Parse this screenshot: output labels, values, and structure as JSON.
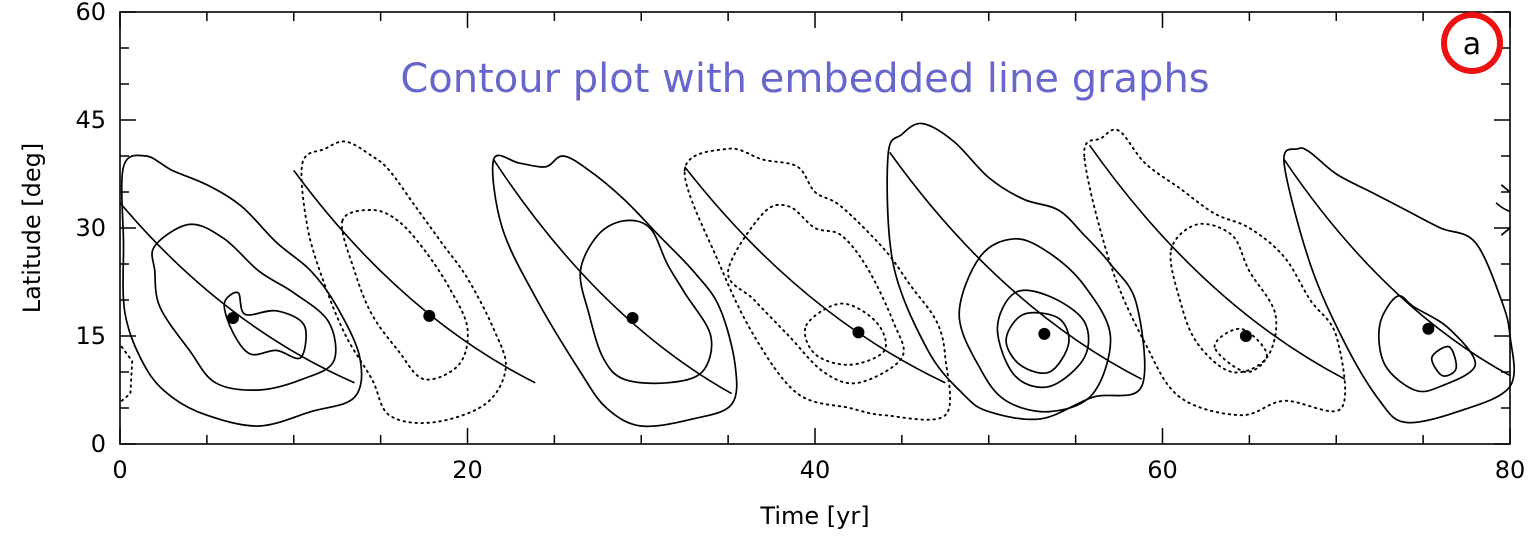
{
  "chart_data": {
    "type": "contour",
    "title": "Contour plot with embedded line graphs",
    "panel_label": "a",
    "xlabel": "Time [yr]",
    "ylabel": "Latitude [deg]",
    "xlim": [
      0,
      80
    ],
    "ylim": [
      0,
      60
    ],
    "x_ticks": [
      0,
      20,
      40,
      60,
      80
    ],
    "y_ticks": [
      0,
      15,
      30,
      45,
      60
    ],
    "x_tick_labels": [
      "0",
      "20",
      "40",
      "60",
      "80"
    ],
    "y_tick_labels": [
      "0",
      "15",
      "30",
      "45",
      "60"
    ],
    "grid": false,
    "colors": {
      "title": "#6666cc",
      "panel_circle": "#ee1111",
      "lines": "#000000"
    },
    "cycles": [
      {
        "style": "solid",
        "levels": [
          [
            [
              0.2,
              38.5
            ],
            [
              1.5,
              40.0
            ],
            [
              3,
              38.0
            ],
            [
              5,
              36.0
            ],
            [
              7,
              33.0
            ],
            [
              9,
              28.0
            ],
            [
              11,
              24.0
            ],
            [
              12.5,
              19.0
            ],
            [
              13.8,
              12.0
            ],
            [
              13.5,
              6.5
            ],
            [
              11,
              4.5
            ],
            [
              8,
              2.5
            ],
            [
              5,
              4.0
            ],
            [
              3,
              6.5
            ],
            [
              1.5,
              10.5
            ],
            [
              0.3,
              18.0
            ],
            [
              0.2,
              28.0
            ]
          ],
          [
            [
              2,
              27.5
            ],
            [
              4,
              30.5
            ],
            [
              6,
              28.5
            ],
            [
              8,
              24.0
            ],
            [
              10,
              21.0
            ],
            [
              12,
              17.0
            ],
            [
              12.3,
              11.5
            ],
            [
              10.5,
              9.0
            ],
            [
              8,
              7.5
            ],
            [
              5.5,
              8.5
            ],
            [
              4,
              13.0
            ],
            [
              2.3,
              19.0
            ],
            [
              2,
              24.0
            ]
          ],
          [
            [
              6,
              19.5
            ],
            [
              6.8,
              21.0
            ],
            [
              7.2,
              18.0
            ],
            [
              9.0,
              18.5
            ],
            [
              10.6,
              16.5
            ],
            [
              10.4,
              12.0
            ],
            [
              9.0,
              13.0
            ],
            [
              7.5,
              12.5
            ],
            [
              6.5,
              15.5
            ]
          ]
        ],
        "track": [
          [
            0,
            33.5
          ],
          [
            13.5,
            8.5
          ]
        ],
        "peak": [
          6.5,
          17.5
        ]
      },
      {
        "style": "dotted",
        "levels": [
          [
            [
              10.5,
              39.0
            ],
            [
              11.8,
              41.0
            ],
            [
              13,
              42.0
            ],
            [
              14.5,
              40.0
            ],
            [
              15.5,
              38.0
            ],
            [
              17,
              33.0
            ],
            [
              18.5,
              28.0
            ],
            [
              20,
              23.0
            ],
            [
              21.5,
              16.0
            ],
            [
              22.2,
              10.5
            ],
            [
              21,
              5.5
            ],
            [
              18,
              3.0
            ],
            [
              15.5,
              4.0
            ],
            [
              14.5,
              9.0
            ],
            [
              13.0,
              15.0
            ],
            [
              11.8,
              22.0
            ],
            [
              10.8,
              30.0
            ]
          ],
          [
            [
              12.8,
              31.0
            ],
            [
              14.5,
              32.5
            ],
            [
              16,
              31.0
            ],
            [
              17.5,
              27.0
            ],
            [
              19,
              21.5
            ],
            [
              20,
              16.0
            ],
            [
              19.5,
              11.0
            ],
            [
              17.5,
              9.0
            ],
            [
              16,
              13.0
            ],
            [
              14.5,
              18.0
            ],
            [
              13.5,
              24.0
            ]
          ]
        ],
        "track": [
          [
            10,
            38.0
          ],
          [
            23.9,
            8.5
          ]
        ],
        "peak": [
          17.8,
          17.8
        ]
      },
      {
        "style": "solid",
        "levels": [
          [
            [
              21.5,
              39.5
            ],
            [
              23,
              39.0
            ],
            [
              24.5,
              38.5
            ],
            [
              25.5,
              40.0
            ],
            [
              27,
              38.0
            ],
            [
              29,
              34.0
            ],
            [
              31,
              29.0
            ],
            [
              33,
              24.0
            ],
            [
              34.5,
              19.0
            ],
            [
              35.4,
              11.0
            ],
            [
              35.2,
              5.5
            ],
            [
              33,
              3.5
            ],
            [
              30,
              2.5
            ],
            [
              28,
              5.0
            ],
            [
              26.5,
              10.0
            ],
            [
              24,
              20.0
            ],
            [
              22,
              30.0
            ]
          ],
          [
            [
              26.5,
              24.0
            ],
            [
              27.5,
              29.0
            ],
            [
              29,
              31.0
            ],
            [
              30.5,
              30.0
            ],
            [
              31.5,
              25.0
            ],
            [
              32.5,
              21.0
            ],
            [
              34,
              15.0
            ],
            [
              33.5,
              10.0
            ],
            [
              31.5,
              8.5
            ],
            [
              29,
              9.0
            ],
            [
              27.8,
              12.0
            ],
            [
              27.0,
              18.0
            ]
          ]
        ],
        "track": [
          [
            21.5,
            39.5
          ],
          [
            35.2,
            7.0
          ]
        ],
        "peak": [
          29.5,
          17.5
        ]
      },
      {
        "style": "dotted",
        "levels": [
          [
            [
              32.5,
              38.0
            ],
            [
              35,
              41.0
            ],
            [
              37,
              39.5
            ],
            [
              39,
              38.5
            ],
            [
              40,
              35.0
            ],
            [
              41.5,
              33.0
            ],
            [
              44,
              27.0
            ],
            [
              45.5,
              22.0
            ],
            [
              47,
              17.0
            ],
            [
              47.5,
              12.0
            ],
            [
              47.5,
              4.0
            ],
            [
              44,
              4.0
            ],
            [
              42,
              5.0
            ],
            [
              39,
              7.0
            ],
            [
              36.5,
              15.0
            ],
            [
              34.5,
              25.0
            ]
          ],
          [
            [
              35,
              24.0
            ],
            [
              37,
              32.0
            ],
            [
              38.5,
              33.0
            ],
            [
              40,
              30.0
            ],
            [
              41.5,
              29.0
            ],
            [
              43,
              24.5
            ],
            [
              44.5,
              17.0
            ],
            [
              45,
              12.0
            ],
            [
              42.5,
              8.5
            ],
            [
              40.5,
              10.0
            ],
            [
              38.5,
              15.0
            ],
            [
              36.5,
              20.0
            ]
          ],
          [
            [
              39.5,
              16.5
            ],
            [
              41.5,
              19.5
            ],
            [
              43.5,
              17.0
            ],
            [
              44,
              13.0
            ],
            [
              42,
              11.0
            ],
            [
              40,
              12.5
            ]
          ]
        ],
        "track": [
          [
            32.5,
            38.5
          ],
          [
            47.5,
            8.5
          ]
        ],
        "peak": [
          42.5,
          15.5
        ]
      },
      {
        "style": "solid",
        "levels": [
          [
            [
              44.2,
              40.0
            ],
            [
              45,
              43.0
            ],
            [
              46.2,
              44.5
            ],
            [
              48,
              42.0
            ],
            [
              50,
              37.0
            ],
            [
              52,
              34.0
            ],
            [
              54,
              32.5
            ],
            [
              55.5,
              29.0
            ],
            [
              57,
              25.0
            ],
            [
              58.5,
              19.5
            ],
            [
              58.8,
              8.0
            ],
            [
              56,
              6.5
            ],
            [
              53,
              3.5
            ],
            [
              50,
              4.5
            ],
            [
              48.5,
              7.0
            ],
            [
              46.5,
              13.0
            ],
            [
              44.5,
              25.0
            ]
          ],
          [
            [
              48.3,
              18.0
            ],
            [
              49.5,
              26.0
            ],
            [
              51.5,
              28.5
            ],
            [
              53.5,
              26.5
            ],
            [
              55.5,
              22.0
            ],
            [
              57,
              15.0
            ],
            [
              56,
              7.0
            ],
            [
              53.5,
              4.5
            ],
            [
              51,
              6.0
            ],
            [
              49.5,
              10.5
            ]
          ],
          [
            [
              50.5,
              16.0
            ],
            [
              51.5,
              21.0
            ],
            [
              53.5,
              20.5
            ],
            [
              55.5,
              17.0
            ],
            [
              55.5,
              12.0
            ],
            [
              53.5,
              8.0
            ],
            [
              51.5,
              9.5
            ]
          ],
          [
            [
              51.0,
              14.5
            ],
            [
              52,
              18.0
            ],
            [
              54,
              17.5
            ],
            [
              54.6,
              14.0
            ],
            [
              53.5,
              10.0
            ],
            [
              51.8,
              11.0
            ]
          ]
        ],
        "track": [
          [
            44.3,
            40.5
          ],
          [
            58.8,
            9.0
          ]
        ],
        "peak": [
          53.2,
          15.3
        ]
      },
      {
        "style": "dotted",
        "levels": [
          [
            [
              55.5,
              40.0
            ],
            [
              56.5,
              42.5
            ],
            [
              57.5,
              43.5
            ],
            [
              59,
              39.0
            ],
            [
              61,
              35.5
            ],
            [
              63,
              32.0
            ],
            [
              65,
              30.0
            ],
            [
              67,
              26.0
            ],
            [
              68.5,
              20.0
            ],
            [
              70,
              15.0
            ],
            [
              70.3,
              5.0
            ],
            [
              67,
              6.0
            ],
            [
              64.5,
              4.0
            ],
            [
              61,
              6.5
            ],
            [
              59,
              14.0
            ],
            [
              57,
              25.0
            ]
          ],
          [
            [
              60.5,
              27.0
            ],
            [
              62,
              30.5
            ],
            [
              64,
              29.0
            ],
            [
              65,
              24.0
            ],
            [
              66.5,
              18.0
            ],
            [
              66,
              12.0
            ],
            [
              64,
              10.0
            ],
            [
              62,
              14.0
            ],
            [
              61,
              20.0
            ]
          ],
          [
            [
              63,
              13.5
            ],
            [
              64.5,
              16.0
            ],
            [
              66,
              12.5
            ],
            [
              64.8,
              10.0
            ]
          ]
        ],
        "track": [
          [
            55.8,
            41.5
          ],
          [
            70.5,
            9.0
          ]
        ],
        "peak": [
          64.8,
          15.0
        ]
      },
      {
        "style": "solid",
        "levels": [
          [
            [
              67,
              39.0
            ],
            [
              67.8,
              41.0
            ],
            [
              68.5,
              40.5
            ],
            [
              70,
              37.5
            ],
            [
              72,
              35.0
            ],
            [
              74,
              32.5
            ],
            [
              76,
              30.0
            ],
            [
              78,
              28.0
            ],
            [
              79.5,
              20.0
            ],
            [
              80,
              15.0
            ],
            [
              80,
              8.0
            ],
            [
              77,
              4.5
            ],
            [
              74,
              3.0
            ],
            [
              72.5,
              6.0
            ],
            [
              70.5,
              14.0
            ],
            [
              68.5,
              25.0
            ]
          ],
          [
            [
              72.5,
              16.5
            ],
            [
              73.5,
              20.5
            ],
            [
              74.5,
              19.0
            ],
            [
              76.5,
              16.0
            ],
            [
              78,
              11.0
            ],
            [
              76,
              8.0
            ],
            [
              74.5,
              7.5
            ],
            [
              72.8,
              11.0
            ]
          ],
          [
            [
              75.5,
              12.0
            ],
            [
              76.5,
              13.5
            ],
            [
              76.9,
              10.5
            ],
            [
              76.1,
              9.5
            ]
          ]
        ],
        "track": [
          [
            67,
            39.5
          ],
          [
            80,
            9.5
          ]
        ],
        "peak": [
          75.3,
          16.0
        ]
      },
      {
        "style": "dotted",
        "partial": "left-edge",
        "levels": [
          [
            [
              0.1,
              13.5
            ],
            [
              0.7,
              11.5
            ],
            [
              0.6,
              7.0
            ],
            [
              0.1,
              6.0
            ]
          ]
        ],
        "track": [],
        "peak": null
      },
      {
        "style": "solid",
        "partial": "right-edge",
        "levels": [
          [
            [
              79.5,
              36.0
            ],
            [
              80,
              35.0
            ]
          ],
          [
            [
              79.5,
              29.0
            ],
            [
              80,
              30.0
            ]
          ]
        ],
        "track": [
          [
            79.2,
            33.5
          ],
          [
            80,
            32.3
          ]
        ],
        "peak": null
      }
    ]
  }
}
